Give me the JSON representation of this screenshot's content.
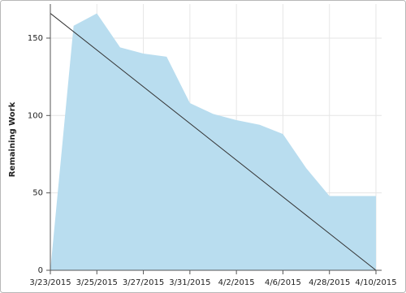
{
  "chart_data": {
    "type": "area",
    "y_label": "Remaining Work",
    "categories": [
      "3/23/2015",
      null,
      "3/25/2015",
      null,
      "3/27/2015",
      null,
      "3/31/2015",
      null,
      "4/2/2015",
      null,
      "4/6/2015",
      null,
      "4/28/2015",
      null,
      "4/10/2015"
    ],
    "values": [
      0,
      158,
      166,
      144,
      140,
      138,
      108,
      101,
      97,
      94,
      88,
      66,
      48,
      48,
      48
    ],
    "color": "#b9ddef",
    "trend": {
      "color": "#333333",
      "values": [
        166,
        0
      ]
    },
    "ylim": [
      0,
      172
    ],
    "yticks": [
      0,
      50,
      100,
      150
    ],
    "grid": true
  }
}
